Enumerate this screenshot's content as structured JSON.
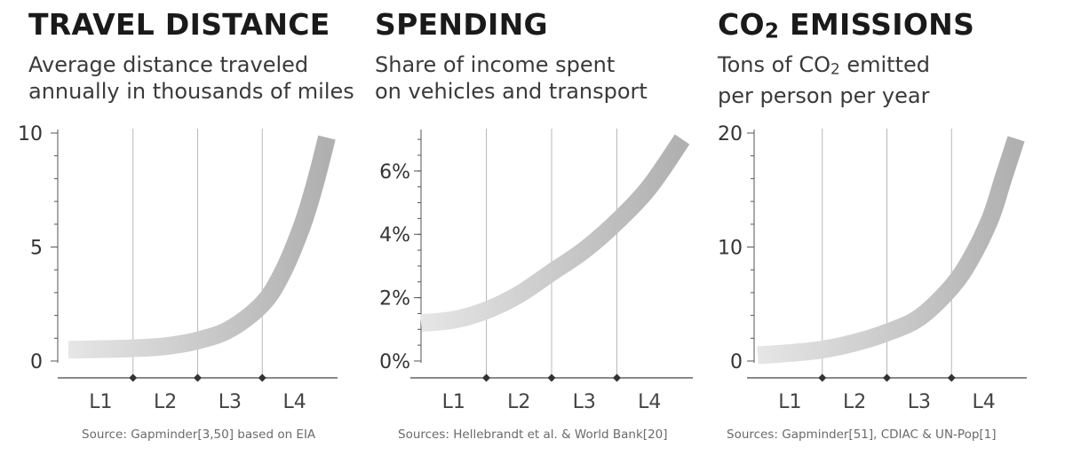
{
  "chart_data": [
    {
      "type": "line",
      "title": "TRAVEL DISTANCE",
      "subtitle_lines": [
        "Average distance traveled",
        "annually in thousands of miles"
      ],
      "categories": [
        "L1",
        "L2",
        "L3",
        "L4"
      ],
      "y_ticks": [
        "0",
        "5",
        "10"
      ],
      "ylim": [
        0,
        10
      ],
      "series": [
        {
          "x": [
            0.0,
            0.5,
            1.0,
            1.5,
            2.0,
            2.5,
            3.0,
            3.3,
            3.6,
            3.8,
            4.0
          ],
          "values": [
            0.5,
            0.52,
            0.56,
            0.65,
            0.9,
            1.4,
            2.5,
            3.8,
            5.8,
            7.6,
            9.8
          ]
        }
      ],
      "source": "Source: Gapminder[3,50] based on EIA",
      "color": "#c9c9c9"
    },
    {
      "type": "line",
      "title": "SPENDING",
      "subtitle_lines": [
        "Share of income spent",
        "on vehicles and transport"
      ],
      "categories": [
        "L1",
        "L2",
        "L3",
        "L4"
      ],
      "y_ticks": [
        "0%",
        "2%",
        "4%",
        "6%"
      ],
      "ylim": [
        0,
        7.2
      ],
      "series": [
        {
          "x": [
            0.0,
            0.5,
            1.0,
            1.5,
            2.0,
            2.5,
            3.0,
            3.5,
            4.0
          ],
          "values": [
            1.2,
            1.3,
            1.6,
            2.1,
            2.8,
            3.5,
            4.4,
            5.5,
            7.0
          ]
        }
      ],
      "source": "Sources: Hellebrandt et al. & World Bank[20]",
      "color": "#c9c9c9"
    },
    {
      "type": "line",
      "title": "CO2 EMISSIONS",
      "title_parts": [
        "CO",
        "2",
        " EMISSIONS"
      ],
      "subtitle_parts": [
        "Tons of CO",
        "2",
        " emitted"
      ],
      "subtitle_lines": [
        "Tons of CO2 emitted",
        "per person per year"
      ],
      "categories": [
        "L1",
        "L2",
        "L3",
        "L4"
      ],
      "y_ticks": [
        "0",
        "10",
        "20"
      ],
      "ylim": [
        0,
        20
      ],
      "series": [
        {
          "x": [
            0.0,
            0.5,
            1.0,
            1.5,
            2.0,
            2.5,
            3.0,
            3.3,
            3.6,
            3.8,
            4.0
          ],
          "values": [
            0.5,
            0.7,
            1.0,
            1.6,
            2.5,
            3.8,
            6.5,
            9.0,
            12.5,
            16.0,
            19.5
          ]
        }
      ],
      "source": "Sources: Gapminder[51], CDIAC & UN-Pop[1]",
      "color": "#c9c9c9"
    }
  ]
}
